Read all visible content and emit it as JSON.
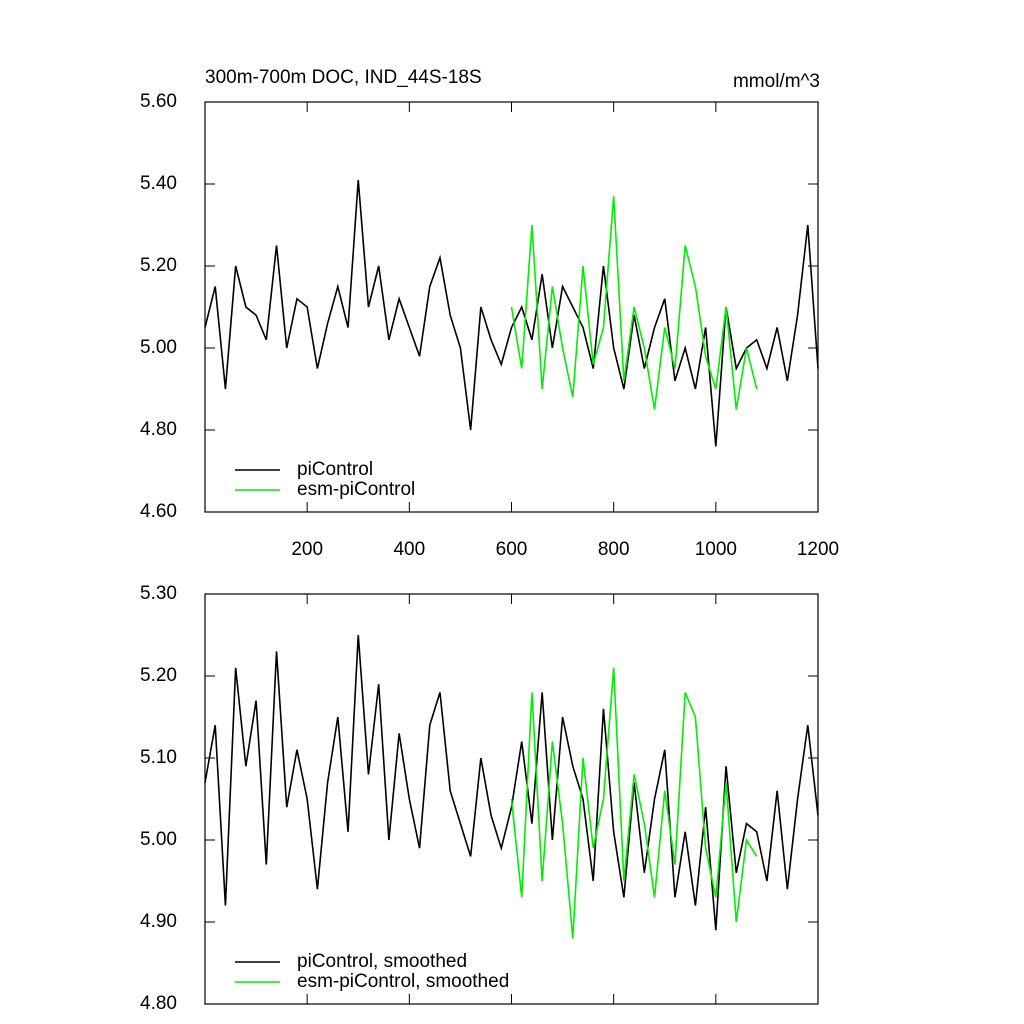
{
  "chart_data": [
    {
      "type": "line",
      "title": "300m-700m DOC, IND_44S-18S",
      "units": "mmol/m^3",
      "x": [
        0,
        20,
        40,
        60,
        80,
        100,
        120,
        140,
        160,
        180,
        200,
        220,
        240,
        260,
        280,
        300,
        320,
        340,
        360,
        380,
        400,
        420,
        440,
        460,
        480,
        500,
        520,
        540,
        560,
        580,
        600,
        620,
        640,
        660,
        680,
        700,
        720,
        740,
        760,
        780,
        800,
        820,
        840,
        860,
        880,
        900,
        920,
        940,
        960,
        980,
        1000,
        1020,
        1040,
        1060,
        1080,
        1100,
        1120,
        1140,
        1160,
        1180,
        1200
      ],
      "series": [
        {
          "name": "piControl",
          "color": "#000000",
          "values": [
            5.05,
            5.15,
            4.9,
            5.2,
            5.1,
            5.08,
            5.02,
            5.25,
            5.0,
            5.12,
            5.1,
            4.95,
            5.06,
            5.15,
            5.05,
            5.41,
            5.1,
            5.2,
            5.02,
            5.12,
            5.05,
            4.98,
            5.15,
            5.22,
            5.08,
            5.0,
            4.8,
            5.1,
            5.02,
            4.96,
            5.05,
            5.1,
            5.02,
            5.18,
            5.0,
            5.15,
            5.1,
            5.05,
            4.95,
            5.2,
            5.0,
            4.9,
            5.08,
            4.95,
            5.05,
            5.12,
            4.92,
            5.0,
            4.9,
            5.05,
            4.76,
            5.1,
            4.95,
            5.0,
            5.02,
            4.95,
            5.05,
            4.92,
            5.08,
            5.3,
            4.95
          ]
        },
        {
          "name": "esm-piControl",
          "color": "#00ee00",
          "values": [
            null,
            null,
            null,
            null,
            null,
            null,
            null,
            null,
            null,
            null,
            null,
            null,
            null,
            null,
            null,
            null,
            null,
            null,
            null,
            null,
            null,
            null,
            null,
            null,
            null,
            null,
            null,
            null,
            null,
            null,
            5.1,
            4.95,
            5.3,
            4.9,
            5.15,
            5.0,
            4.88,
            5.2,
            4.96,
            5.05,
            5.37,
            4.92,
            5.1,
            5.0,
            4.85,
            5.05,
            4.95,
            5.25,
            5.15,
            4.98,
            4.9,
            5.1,
            4.85,
            5.0,
            4.9,
            null,
            null,
            null,
            null,
            null,
            null
          ]
        }
      ],
      "xlim": [
        0,
        1200
      ],
      "xticks": [
        200,
        400,
        600,
        800,
        1000,
        1200
      ],
      "show_xtick_labels": true,
      "ylim": [
        4.6,
        5.6
      ],
      "yticks": [
        {
          "value": 4.6,
          "label": "4.60"
        },
        {
          "value": 4.8,
          "label": "4.80"
        },
        {
          "value": 5.0,
          "label": "5.00"
        },
        {
          "value": 5.2,
          "label": "5.20"
        },
        {
          "value": 5.4,
          "label": "5.40"
        },
        {
          "value": 5.6,
          "label": "5.60"
        }
      ],
      "legend": "lower left"
    },
    {
      "type": "line",
      "x": [
        0,
        20,
        40,
        60,
        80,
        100,
        120,
        140,
        160,
        180,
        200,
        220,
        240,
        260,
        280,
        300,
        320,
        340,
        360,
        380,
        400,
        420,
        440,
        460,
        480,
        500,
        520,
        540,
        560,
        580,
        600,
        620,
        640,
        660,
        680,
        700,
        720,
        740,
        760,
        780,
        800,
        820,
        840,
        860,
        880,
        900,
        920,
        940,
        960,
        980,
        1000,
        1020,
        1040,
        1060,
        1080,
        1100,
        1120,
        1140,
        1160,
        1180,
        1200
      ],
      "series": [
        {
          "name": "piControl, smoothed",
          "color": "#000000",
          "values": [
            5.07,
            5.14,
            4.92,
            5.21,
            5.09,
            5.17,
            4.97,
            5.23,
            5.04,
            5.11,
            5.05,
            4.94,
            5.07,
            5.15,
            5.01,
            5.25,
            5.08,
            5.19,
            5.0,
            5.13,
            5.05,
            4.99,
            5.14,
            5.18,
            5.06,
            5.02,
            4.98,
            5.1,
            5.03,
            4.99,
            5.04,
            5.12,
            5.02,
            5.18,
            5.0,
            5.15,
            5.09,
            5.05,
            4.95,
            5.16,
            5.01,
            4.93,
            5.07,
            4.96,
            5.05,
            5.11,
            4.93,
            5.01,
            4.92,
            5.04,
            4.89,
            5.09,
            4.96,
            5.02,
            5.01,
            4.95,
            5.06,
            4.94,
            5.05,
            5.14,
            5.03
          ]
        },
        {
          "name": "esm-piControl, smoothed",
          "color": "#00ee00",
          "values": [
            null,
            null,
            null,
            null,
            null,
            null,
            null,
            null,
            null,
            null,
            null,
            null,
            null,
            null,
            null,
            null,
            null,
            null,
            null,
            null,
            null,
            null,
            null,
            null,
            null,
            null,
            null,
            null,
            null,
            null,
            5.05,
            4.93,
            5.18,
            4.95,
            5.12,
            5.02,
            4.88,
            5.1,
            4.99,
            5.05,
            5.21,
            4.95,
            5.08,
            5.02,
            4.93,
            5.06,
            4.97,
            5.18,
            5.15,
            4.99,
            4.93,
            5.07,
            4.9,
            5.0,
            4.98,
            null,
            null,
            null,
            null,
            null,
            null
          ]
        }
      ],
      "xlim": [
        0,
        1200
      ],
      "xticks": [
        200,
        400,
        600,
        800,
        1000,
        1200
      ],
      "show_xtick_labels": false,
      "ylim": [
        4.8,
        5.3
      ],
      "yticks": [
        {
          "value": 4.8,
          "label": "4.80"
        },
        {
          "value": 4.9,
          "label": "4.90"
        },
        {
          "value": 5.0,
          "label": "5.00"
        },
        {
          "value": 5.1,
          "label": "5.10"
        },
        {
          "value": 5.2,
          "label": "5.20"
        },
        {
          "value": 5.3,
          "label": "5.30"
        }
      ],
      "legend": "lower left"
    }
  ]
}
